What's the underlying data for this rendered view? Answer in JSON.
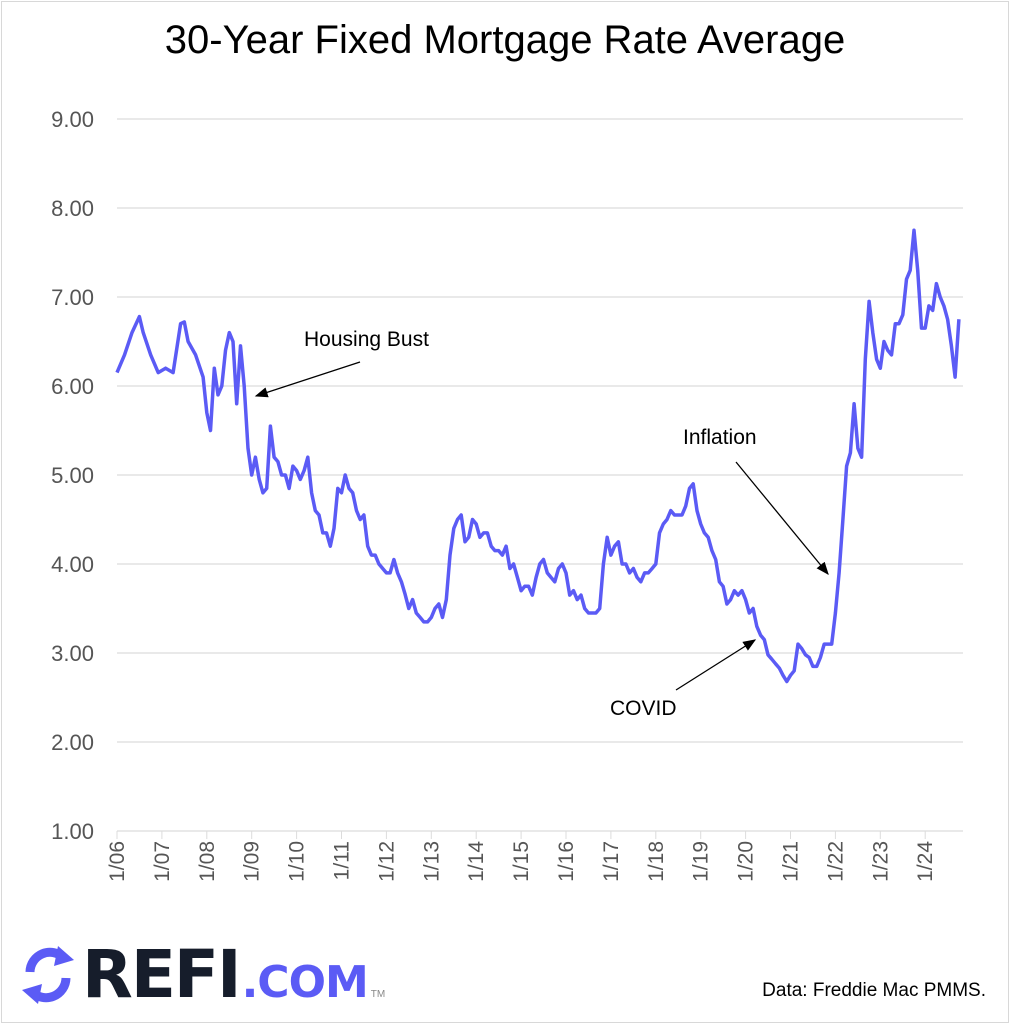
{
  "chart_data": {
    "type": "line",
    "title": "30-Year Fixed Mortgage Rate Average",
    "xlabel": "",
    "ylabel": "",
    "ylim": [
      1,
      9
    ],
    "y_ticks": [
      "1.00",
      "2.00",
      "3.00",
      "4.00",
      "5.00",
      "6.00",
      "7.00",
      "8.00",
      "9.00"
    ],
    "x_ticks": [
      "1/06",
      "1/07",
      "1/08",
      "1/09",
      "1/10",
      "1/11",
      "1/12",
      "1/13",
      "1/14",
      "1/15",
      "1/16",
      "1/17",
      "1/18",
      "1/19",
      "1/20",
      "1/21",
      "1/22",
      "1/23",
      "1/24"
    ],
    "grid": "horizontal",
    "line_color": "#5b5bf5",
    "series": [
      {
        "x": [
          "2006-01",
          "2006-03",
          "2006-05",
          "2006-07",
          "2006-08",
          "2006-10",
          "2006-12",
          "2007-02",
          "2007-04",
          "2007-06",
          "2007-07",
          "2007-08",
          "2007-10",
          "2007-12",
          "2008-01",
          "2008-02",
          "2008-03",
          "2008-04",
          "2008-05",
          "2008-06",
          "2008-07",
          "2008-08",
          "2008-09",
          "2008-10",
          "2008-11",
          "2008-12",
          "2009-01",
          "2009-02",
          "2009-03",
          "2009-04",
          "2009-05",
          "2009-06",
          "2009-07",
          "2009-08",
          "2009-09",
          "2009-10",
          "2009-11",
          "2009-12",
          "2010-01",
          "2010-02",
          "2010-03",
          "2010-04",
          "2010-05",
          "2010-06",
          "2010-07",
          "2010-08",
          "2010-09",
          "2010-10",
          "2010-11",
          "2010-12",
          "2011-01",
          "2011-02",
          "2011-03",
          "2011-04",
          "2011-05",
          "2011-06",
          "2011-07",
          "2011-08",
          "2011-09",
          "2011-10",
          "2011-11",
          "2011-12",
          "2012-01",
          "2012-02",
          "2012-03",
          "2012-04",
          "2012-05",
          "2012-06",
          "2012-07",
          "2012-08",
          "2012-09",
          "2012-10",
          "2012-11",
          "2012-12",
          "2013-01",
          "2013-02",
          "2013-03",
          "2013-04",
          "2013-05",
          "2013-06",
          "2013-07",
          "2013-08",
          "2013-09",
          "2013-10",
          "2013-11",
          "2013-12",
          "2014-01",
          "2014-02",
          "2014-03",
          "2014-04",
          "2014-05",
          "2014-06",
          "2014-07",
          "2014-08",
          "2014-09",
          "2014-10",
          "2014-11",
          "2014-12",
          "2015-01",
          "2015-02",
          "2015-03",
          "2015-04",
          "2015-05",
          "2015-06",
          "2015-07",
          "2015-08",
          "2015-09",
          "2015-10",
          "2015-11",
          "2015-12",
          "2016-01",
          "2016-02",
          "2016-03",
          "2016-04",
          "2016-05",
          "2016-06",
          "2016-07",
          "2016-08",
          "2016-09",
          "2016-10",
          "2016-11",
          "2016-12",
          "2017-01",
          "2017-02",
          "2017-03",
          "2017-04",
          "2017-05",
          "2017-06",
          "2017-07",
          "2017-08",
          "2017-09",
          "2017-10",
          "2017-11",
          "2017-12",
          "2018-01",
          "2018-02",
          "2018-03",
          "2018-04",
          "2018-05",
          "2018-06",
          "2018-07",
          "2018-08",
          "2018-09",
          "2018-10",
          "2018-11",
          "2018-12",
          "2019-01",
          "2019-02",
          "2019-03",
          "2019-04",
          "2019-05",
          "2019-06",
          "2019-07",
          "2019-08",
          "2019-09",
          "2019-10",
          "2019-11",
          "2019-12",
          "2020-01",
          "2020-02",
          "2020-03",
          "2020-04",
          "2020-05",
          "2020-06",
          "2020-07",
          "2020-08",
          "2020-09",
          "2020-10",
          "2020-11",
          "2020-12",
          "2021-01",
          "2021-02",
          "2021-03",
          "2021-04",
          "2021-05",
          "2021-06",
          "2021-07",
          "2021-08",
          "2021-09",
          "2021-10",
          "2021-11",
          "2021-12",
          "2022-01",
          "2022-02",
          "2022-03",
          "2022-04",
          "2022-05",
          "2022-06",
          "2022-07",
          "2022-08",
          "2022-09",
          "2022-10",
          "2022-11",
          "2022-12",
          "2023-01",
          "2023-02",
          "2023-03",
          "2023-04",
          "2023-05",
          "2023-06",
          "2023-07",
          "2023-08",
          "2023-09",
          "2023-10",
          "2023-11",
          "2023-12",
          "2024-01",
          "2024-02",
          "2024-03",
          "2024-04",
          "2024-05",
          "2024-06",
          "2024-07",
          "2024-08",
          "2024-09",
          "2024-10"
        ],
        "values": [
          6.15,
          6.35,
          6.6,
          6.78,
          6.6,
          6.35,
          6.15,
          6.2,
          6.15,
          6.7,
          6.72,
          6.5,
          6.35,
          6.1,
          5.7,
          5.5,
          6.2,
          5.9,
          6.0,
          6.4,
          6.6,
          6.5,
          5.8,
          6.45,
          6.0,
          5.3,
          5.0,
          5.2,
          4.95,
          4.8,
          4.85,
          5.55,
          5.2,
          5.15,
          5.0,
          5.0,
          4.85,
          5.1,
          5.05,
          4.95,
          5.05,
          5.2,
          4.8,
          4.6,
          4.55,
          4.35,
          4.35,
          4.2,
          4.4,
          4.85,
          4.8,
          5.0,
          4.85,
          4.8,
          4.6,
          4.5,
          4.55,
          4.2,
          4.1,
          4.1,
          4.0,
          3.95,
          3.9,
          3.9,
          4.05,
          3.9,
          3.8,
          3.66,
          3.5,
          3.6,
          3.45,
          3.4,
          3.35,
          3.35,
          3.4,
          3.5,
          3.55,
          3.4,
          3.6,
          4.1,
          4.4,
          4.5,
          4.55,
          4.25,
          4.3,
          4.5,
          4.45,
          4.3,
          4.35,
          4.35,
          4.2,
          4.15,
          4.15,
          4.1,
          4.2,
          3.95,
          4.0,
          3.85,
          3.7,
          3.75,
          3.75,
          3.65,
          3.85,
          4.0,
          4.05,
          3.9,
          3.85,
          3.8,
          3.95,
          4.0,
          3.9,
          3.65,
          3.7,
          3.6,
          3.65,
          3.5,
          3.45,
          3.45,
          3.45,
          3.5,
          4.0,
          4.3,
          4.1,
          4.2,
          4.25,
          4.0,
          4.0,
          3.9,
          3.95,
          3.85,
          3.8,
          3.9,
          3.9,
          3.95,
          4.0,
          4.35,
          4.45,
          4.5,
          4.6,
          4.55,
          4.55,
          4.55,
          4.65,
          4.85,
          4.9,
          4.6,
          4.45,
          4.35,
          4.3,
          4.15,
          4.05,
          3.8,
          3.75,
          3.55,
          3.6,
          3.7,
          3.65,
          3.7,
          3.6,
          3.45,
          3.5,
          3.3,
          3.2,
          3.15,
          2.98,
          2.93,
          2.88,
          2.83,
          2.75,
          2.68,
          2.75,
          2.8,
          3.1,
          3.05,
          2.98,
          2.95,
          2.85,
          2.85,
          2.95,
          3.1,
          3.1,
          3.1,
          3.45,
          3.9,
          4.5,
          5.1,
          5.25,
          5.8,
          5.3,
          5.2,
          6.3,
          6.95,
          6.6,
          6.3,
          6.2,
          6.5,
          6.4,
          6.35,
          6.7,
          6.7,
          6.8,
          7.2,
          7.3,
          7.75,
          7.3,
          6.65,
          6.65,
          6.9,
          6.85,
          7.15,
          7.0,
          6.9,
          6.75,
          6.45,
          6.1,
          6.75
        ]
      }
    ],
    "annotations": [
      "Housing Bust",
      "Inflation",
      "COVID"
    ],
    "source": "Data: Freddie Mac PMMS."
  },
  "logo": {
    "text": "REFI.COM",
    "tm": "TM",
    "brand_color": "#5b5bf5",
    "dark_color": "#161d2b"
  }
}
